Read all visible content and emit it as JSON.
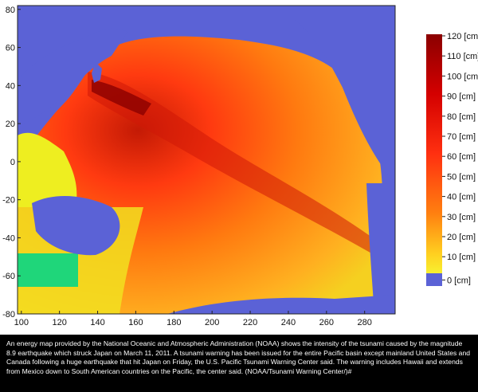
{
  "map": {
    "x_ticks": [
      "100",
      "120",
      "140",
      "160",
      "180",
      "200",
      "220",
      "240",
      "260",
      "280"
    ],
    "y_ticks": [
      "80",
      "60",
      "40",
      "20",
      "0",
      "-20",
      "-40",
      "-60",
      "-80"
    ],
    "extent": {
      "lon_min": 98,
      "lon_max": 296,
      "lat_min": -80,
      "lat_max": 82
    },
    "colors": {
      "land": "#5b62d6",
      "shallow": "#1fd67a",
      "low": "#f0f020",
      "mid": "#ff9a10",
      "high": "#ff2a10",
      "peak": "#a80000"
    }
  },
  "colorbar": {
    "labels": [
      "120 [cm]",
      "110 [cm]",
      "100 [cm]",
      "90 [cm]",
      "80 [cm]",
      "70 [cm]",
      "60 [cm]",
      "50 [cm]",
      "40 [cm]",
      "30 [cm]",
      "20 [cm]",
      "10 [cm]",
      "0 [cm]"
    ],
    "stops": [
      "#8b0000",
      "#b00000",
      "#d40000",
      "#e81000",
      "#f62000",
      "#ff3010",
      "#ff4a10",
      "#ff6410",
      "#ff8010",
      "#ff9c10",
      "#ffc020",
      "#f8e020",
      "#5b62d6"
    ]
  },
  "caption": "An energy map provided by the National Oceanic and Atmospheric Administration (NOAA) shows the intensity of the tsunami caused by the magnitude 8.9 earthquake which struck Japan on March 11, 2011. A tsunami warning has been issued for the entire Pacific basin except mainland United States and Canada following a huge earthquake that hit Japan on Friday, the U.S. Pacific Tsunami Warning Center said. The warning includes Hawaii and extends from Mexico down to South American countries on the Pacific, the center said. (NOAA/Tsunami Warning Center/)#"
}
